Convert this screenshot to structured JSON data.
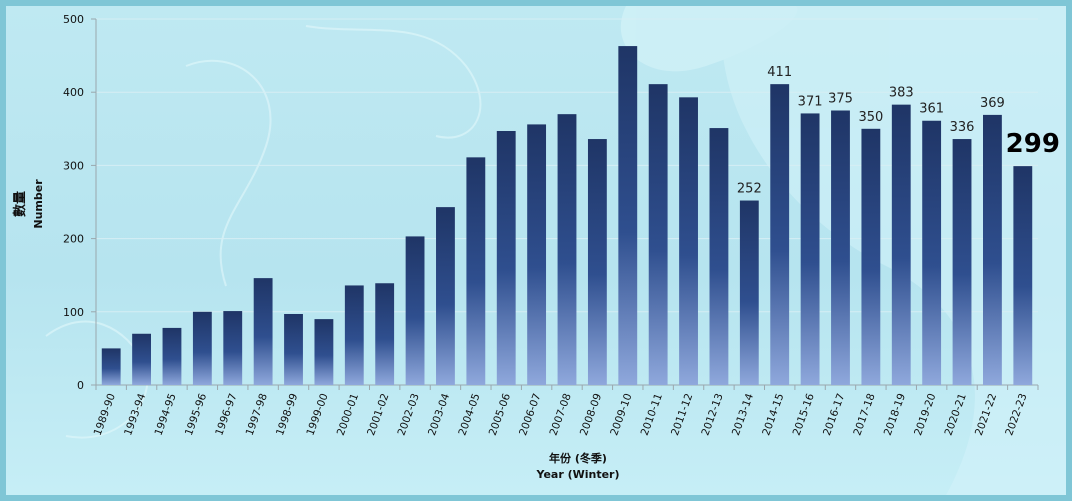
{
  "chart_data": {
    "type": "bar",
    "title": "",
    "xlabel_cn": "年份 (冬季)",
    "xlabel": "Year (Winter)",
    "ylabel_cn": "數量",
    "ylabel": "Number",
    "ylim": [
      0,
      500
    ],
    "yticks": [
      0,
      100,
      200,
      300,
      400,
      500
    ],
    "grid": true,
    "categories": [
      "1989-90",
      "1993-94",
      "1994-95",
      "1995-96",
      "1996-97",
      "1997-98",
      "1998-99",
      "1999-00",
      "2000-01",
      "2001-02",
      "2002-03",
      "2003-04",
      "2004-05",
      "2005-06",
      "2006-07",
      "2007-08",
      "2008-09",
      "2009-10",
      "2010-11",
      "2011-12",
      "2012-13",
      "2013-14",
      "2014-15",
      "2015-16",
      "2016-17",
      "2017-18",
      "2018-19",
      "2019-20",
      "2020-21",
      "2021-22",
      "2022-23"
    ],
    "values": [
      50,
      70,
      78,
      100,
      101,
      146,
      97,
      90,
      136,
      139,
      203,
      243,
      311,
      347,
      356,
      370,
      336,
      463,
      411,
      393,
      351,
      252,
      411,
      371,
      375,
      350,
      383,
      361,
      336,
      369,
      299
    ],
    "data_labels": [
      null,
      null,
      null,
      null,
      null,
      null,
      null,
      null,
      null,
      null,
      null,
      null,
      null,
      null,
      null,
      null,
      null,
      null,
      null,
      null,
      null,
      "252",
      "411",
      "371",
      "375",
      "350",
      "383",
      "361",
      "336",
      "369",
      "299"
    ],
    "highlight_index": 30,
    "colors": {
      "bar_top": "#1f3566",
      "bar_bottom": "#8fa8dc",
      "grid": "#d6eef4",
      "axis": "#9aa7ad"
    }
  }
}
